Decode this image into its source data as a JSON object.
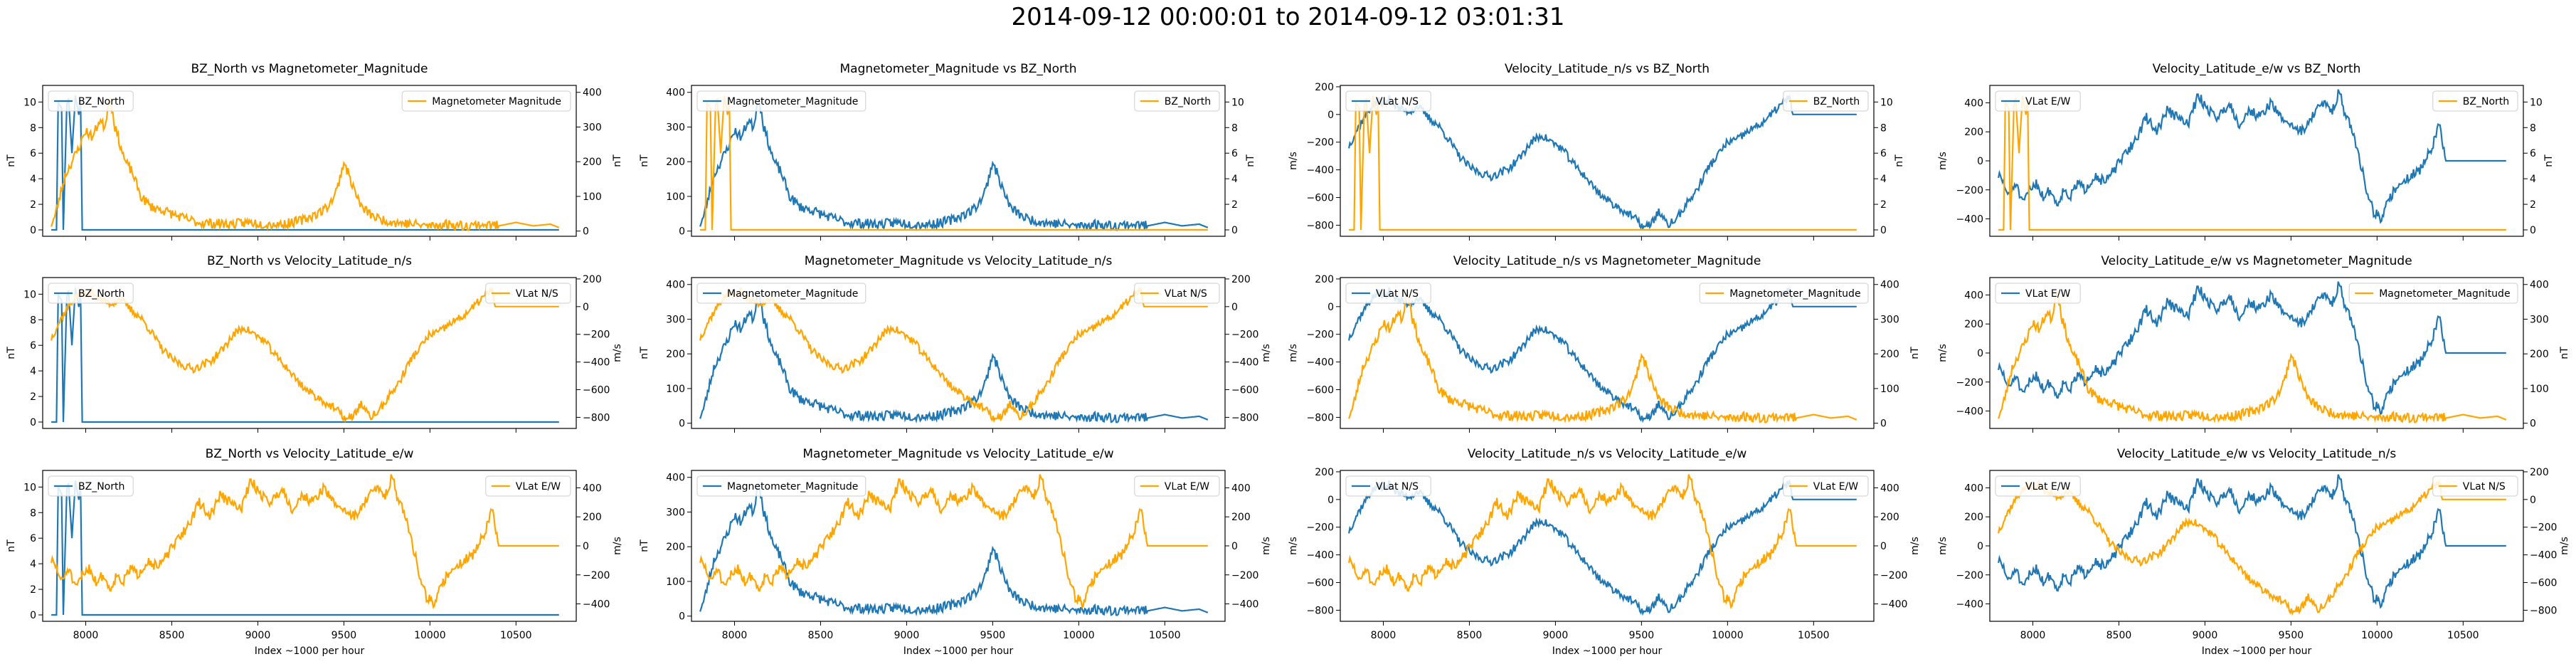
{
  "suptitle": "2014-09-12 00:00:01 to 2014-09-12 03:01:31",
  "colors": {
    "blue": "#1f77b4",
    "orange": "#ffa500"
  },
  "x_ticks": [
    8000,
    8500,
    9000,
    9500,
    10000,
    10500
  ],
  "x_label": "Index ~1000 per hour",
  "x_range": [
    7750,
    10850
  ],
  "shape_seeds": {
    "BZ_North": 11,
    "Magnetometer_Magnitude": 23,
    "Velocity_Latitude_n/s": 37,
    "Velocity_Latitude_e/w": 51
  },
  "series": {
    "BZ_North": {
      "legend": "BZ_North",
      "unit": "nT",
      "ylim": [
        -0.5,
        11.3
      ],
      "ticks": [
        0,
        2,
        4,
        6,
        8,
        10
      ],
      "x": [
        7800,
        7830,
        7840,
        7860,
        7870,
        7890,
        7900,
        7920,
        7940,
        7960,
        7970,
        7980,
        8000,
        8500,
        9000,
        9500,
        10000,
        10500,
        10750
      ],
      "y": [
        0,
        0,
        10,
        9.5,
        0,
        9.8,
        10.3,
        6,
        10.5,
        9,
        10.2,
        0,
        0,
        0,
        0,
        0,
        0,
        0,
        0
      ],
      "noise": 0
    },
    "Magnetometer_Magnitude": {
      "legend": "Magnetometer_Magnitude",
      "legend_alt": "Magnetometer Magnitude",
      "unit": "nT",
      "ylim": [
        -15,
        420
      ],
      "ticks": [
        0,
        100,
        200,
        300,
        400
      ],
      "x": [
        7800,
        7820,
        7850,
        7880,
        7920,
        7960,
        8000,
        8040,
        8080,
        8110,
        8140,
        8170,
        8200,
        8230,
        8270,
        8320,
        8380,
        8450,
        8550,
        8650,
        8750,
        8850,
        8950,
        9050,
        9150,
        9250,
        9320,
        9380,
        9420,
        9460,
        9500,
        9530,
        9560,
        9600,
        9650,
        9700,
        9800,
        9900,
        10000,
        10100,
        10200,
        10300,
        10400,
        10500,
        10600,
        10700,
        10750
      ],
      "y": [
        20,
        40,
        100,
        160,
        200,
        240,
        290,
        270,
        320,
        300,
        390,
        300,
        250,
        200,
        170,
        100,
        70,
        60,
        40,
        25,
        22,
        20,
        25,
        20,
        20,
        30,
        45,
        60,
        80,
        120,
        200,
        160,
        120,
        70,
        50,
        35,
        25,
        20,
        15,
        20,
        15,
        20,
        15,
        25,
        15,
        20,
        10
      ],
      "noise": 14
    },
    "Velocity_Latitude_n/s": {
      "legend": "VLat N/S",
      "unit": "m/s",
      "ylim": [
        -880,
        210
      ],
      "ticks": [
        -800,
        -600,
        -400,
        -200,
        0,
        200
      ],
      "x": [
        7800,
        7830,
        7860,
        7890,
        7920,
        7950,
        7980,
        8010,
        8040,
        8070,
        8100,
        8150,
        8200,
        8260,
        8320,
        8380,
        8440,
        8500,
        8560,
        8620,
        8680,
        8740,
        8800,
        8860,
        8920,
        8980,
        9040,
        9100,
        9160,
        9220,
        9280,
        9340,
        9400,
        9460,
        9520,
        9560,
        9600,
        9650,
        9700,
        9760,
        9820,
        9880,
        9940,
        10000,
        10060,
        10120,
        10180,
        10240,
        10300,
        10360,
        10380,
        10500,
        10750
      ],
      "y": [
        -230,
        -150,
        -80,
        -20,
        40,
        80,
        100,
        70,
        120,
        60,
        40,
        20,
        60,
        -20,
        -80,
        -180,
        -300,
        -380,
        -420,
        -450,
        -420,
        -380,
        -300,
        -200,
        -150,
        -200,
        -250,
        -350,
        -430,
        -520,
        -600,
        -650,
        -700,
        -750,
        -820,
        -780,
        -700,
        -800,
        -760,
        -650,
        -550,
        -400,
        -300,
        -200,
        -180,
        -120,
        -80,
        -20,
        60,
        120,
        0,
        0,
        0
      ],
      "noise": 30
    },
    "Velocity_Latitude_e/w": {
      "legend": "VLat E/W",
      "unit": "m/s",
      "ylim": [
        -520,
        520
      ],
      "ticks": [
        -400,
        -200,
        0,
        200,
        400
      ],
      "x": [
        7800,
        7830,
        7860,
        7900,
        7940,
        7980,
        8020,
        8060,
        8100,
        8140,
        8180,
        8220,
        8260,
        8300,
        8360,
        8420,
        8480,
        8540,
        8600,
        8660,
        8720,
        8780,
        8840,
        8900,
        8960,
        9020,
        9080,
        9140,
        9200,
        9260,
        9320,
        9380,
        9440,
        9500,
        9560,
        9620,
        9680,
        9740,
        9780,
        9820,
        9860,
        9900,
        9940,
        9980,
        10020,
        10060,
        10100,
        10140,
        10200,
        10260,
        10320,
        10360,
        10400,
        10500,
        10750
      ],
      "y": [
        -100,
        -150,
        -250,
        -150,
        -300,
        -200,
        -150,
        -250,
        -200,
        -300,
        -200,
        -250,
        -150,
        -200,
        -100,
        -150,
        -50,
        50,
        150,
        300,
        200,
        350,
        300,
        250,
        450,
        350,
        300,
        400,
        250,
        350,
        300,
        400,
        300,
        250,
        200,
        300,
        400,
        350,
        480,
        300,
        200,
        0,
        -200,
        -350,
        -400,
        -300,
        -200,
        -150,
        -100,
        -50,
        100,
        250,
        0,
        0,
        0
      ],
      "noise": 35
    }
  },
  "panels": [
    {
      "title": "BZ_North vs Magnetometer_Magnitude",
      "left": "BZ_North",
      "right": "Magnetometer_Magnitude",
      "right_legend": "Magnetometer Magnitude"
    },
    {
      "title": "Magnetometer_Magnitude vs BZ_North",
      "left": "Magnetometer_Magnitude",
      "right": "BZ_North"
    },
    {
      "title": "Velocity_Latitude_n/s vs BZ_North",
      "left": "Velocity_Latitude_n/s",
      "right": "BZ_North"
    },
    {
      "title": "Velocity_Latitude_e/w vs BZ_North",
      "left": "Velocity_Latitude_e/w",
      "right": "BZ_North"
    },
    {
      "title": "BZ_North vs Velocity_Latitude_n/s",
      "left": "BZ_North",
      "right": "Velocity_Latitude_n/s"
    },
    {
      "title": "Magnetometer_Magnitude vs Velocity_Latitude_n/s",
      "left": "Magnetometer_Magnitude",
      "right": "Velocity_Latitude_n/s"
    },
    {
      "title": "Velocity_Latitude_n/s vs Magnetometer_Magnitude",
      "left": "Velocity_Latitude_n/s",
      "right": "Magnetometer_Magnitude"
    },
    {
      "title": "Velocity_Latitude_e/w vs Magnetometer_Magnitude",
      "left": "Velocity_Latitude_e/w",
      "right": "Magnetometer_Magnitude"
    },
    {
      "title": "BZ_North vs Velocity_Latitude_e/w",
      "left": "BZ_North",
      "right": "Velocity_Latitude_e/w"
    },
    {
      "title": "Magnetometer_Magnitude vs Velocity_Latitude_e/w",
      "left": "Magnetometer_Magnitude",
      "right": "Velocity_Latitude_e/w"
    },
    {
      "title": "Velocity_Latitude_n/s vs Velocity_Latitude_e/w",
      "left": "Velocity_Latitude_n/s",
      "right": "Velocity_Latitude_e/w"
    },
    {
      "title": "Velocity_Latitude_e/w vs Velocity_Latitude_n/s",
      "left": "Velocity_Latitude_e/w",
      "right": "Velocity_Latitude_n/s"
    }
  ],
  "chart_data": {
    "type": "line",
    "title": "2014-09-12 00:00:01 to 2014-09-12 03:01:31",
    "layout": "3 rows x 4 columns, shared x axis, twin y axes",
    "xlabel": "Index ~1000 per hour",
    "xlim": [
      7750,
      10850
    ]
  }
}
